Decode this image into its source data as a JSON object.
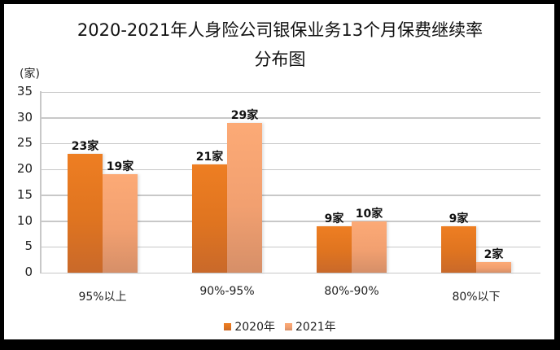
{
  "title_line1": "2020-2021年人身险公司银保业务13个月保费继续率",
  "title_line2": "分布图",
  "unit_label": "(家)",
  "colors": {
    "2020": "#ea7a22",
    "2021": "#f7a574",
    "grid": "#c8c8c8",
    "frame": "#000000"
  },
  "y_ticks": [
    "35",
    "30",
    "25",
    "20",
    "15",
    "10",
    "5",
    "0"
  ],
  "categories": [
    "95%以上",
    "90%-95%",
    "80%-90%",
    "80%以下"
  ],
  "labels_2020": [
    "23家",
    "21家",
    "9家",
    "9家"
  ],
  "labels_2021": [
    "19家",
    "29家",
    "10家",
    "2家"
  ],
  "legend": [
    "2020年",
    "2021年"
  ],
  "chart_data": {
    "type": "bar",
    "title": "2020-2021年人身险公司银保业务13个月保费继续率分布图",
    "xlabel": "",
    "ylabel": "(家)",
    "ylim": [
      0,
      35
    ],
    "yticks": [
      0,
      5,
      10,
      15,
      20,
      25,
      30,
      35
    ],
    "grid": true,
    "legend_position": "bottom",
    "categories": [
      "95%以上",
      "90%-95%",
      "80%-90%",
      "80%以下"
    ],
    "series": [
      {
        "name": "2020年",
        "values": [
          23,
          21,
          9,
          9
        ],
        "data_labels": [
          "23家",
          "21家",
          "9家",
          "9家"
        ]
      },
      {
        "name": "2021年",
        "values": [
          19,
          29,
          10,
          2
        ],
        "data_labels": [
          "19家",
          "29家",
          "10家",
          "2家"
        ]
      }
    ]
  }
}
